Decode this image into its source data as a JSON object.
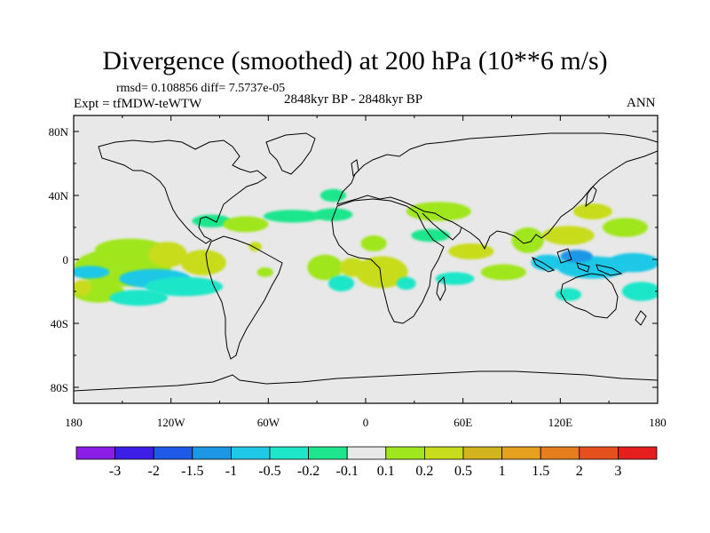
{
  "title": "Divergence (smoothed) at 200 hPa (10**6 m/s)",
  "stats": "rmsd= 0.108856 diff= 7.5737e-05",
  "experiment": "Expt = tfMDW-teWTW",
  "period": "2848kyr BP - 2848kyr BP",
  "season": "ANN",
  "lat_axis": {
    "labels": [
      "80N",
      "40N",
      "0",
      "40S",
      "80S"
    ],
    "values": [
      80,
      40,
      0,
      -40,
      -80
    ],
    "range": [
      -90,
      90
    ]
  },
  "lon_axis": {
    "labels": [
      "180",
      "120W",
      "60W",
      "0",
      "60E",
      "120E",
      "180"
    ],
    "values": [
      -180,
      -120,
      -60,
      0,
      60,
      120,
      180
    ],
    "range": [
      -180,
      180
    ]
  },
  "colorbar": {
    "colors": [
      "#8b1ee6",
      "#3c1ee6",
      "#1e5ae6",
      "#1e96e6",
      "#1ec8e6",
      "#1ee6c8",
      "#1ee68c",
      "#e8e8e8",
      "#a0e61e",
      "#c8dc1e",
      "#d2b41e",
      "#e6a01e",
      "#e67d1e",
      "#e6501e",
      "#e61e1e"
    ],
    "labels": [
      "-3",
      "-2",
      "-1.5",
      "-1",
      "-0.5",
      "-0.2",
      "-0.1",
      "0.1",
      "0.2",
      "0.5",
      "1",
      "1.5",
      "2",
      "3"
    ]
  },
  "field_blobs": [
    {
      "lon": -150,
      "lat": -5,
      "rx": 30,
      "ry": 12,
      "color": "#a0e61e"
    },
    {
      "lon": -145,
      "lat": 6,
      "rx": 22,
      "ry": 7,
      "color": "#a0e61e"
    },
    {
      "lon": -122,
      "lat": 3,
      "rx": 12,
      "ry": 8,
      "color": "#c8dc1e"
    },
    {
      "lon": -100,
      "lat": -2,
      "rx": 14,
      "ry": 8,
      "color": "#c8dc1e"
    },
    {
      "lon": -170,
      "lat": -8,
      "rx": 12,
      "ry": 4,
      "color": "#1ec8e6"
    },
    {
      "lon": -130,
      "lat": -12,
      "rx": 22,
      "ry": 6,
      "color": "#1ec8e6"
    },
    {
      "lon": -112,
      "lat": -17,
      "rx": 24,
      "ry": 6,
      "color": "#1ee6c8"
    },
    {
      "lon": -165,
      "lat": -20,
      "rx": 16,
      "ry": 7,
      "color": "#a0e61e"
    },
    {
      "lon": -175,
      "lat": -18,
      "rx": 6,
      "ry": 5,
      "color": "#c8dc1e"
    },
    {
      "lon": -140,
      "lat": -24,
      "rx": 18,
      "ry": 5,
      "color": "#1ee6c8"
    },
    {
      "lon": -95,
      "lat": 24,
      "rx": 12,
      "ry": 4,
      "color": "#1ee68c"
    },
    {
      "lon": -74,
      "lat": 22,
      "rx": 14,
      "ry": 5,
      "color": "#a0e61e"
    },
    {
      "lon": -45,
      "lat": 27,
      "rx": 18,
      "ry": 4,
      "color": "#1ee68c"
    },
    {
      "lon": -20,
      "lat": 28,
      "rx": 12,
      "ry": 4,
      "color": "#1ee68c"
    },
    {
      "lon": -20,
      "lat": 40,
      "rx": 8,
      "ry": 4,
      "color": "#1ee68c"
    },
    {
      "lon": -68,
      "lat": 8,
      "rx": 4,
      "ry": 3,
      "color": "#c8dc1e"
    },
    {
      "lon": -62,
      "lat": -8,
      "rx": 5,
      "ry": 3,
      "color": "#a0e61e"
    },
    {
      "lon": -25,
      "lat": -5,
      "rx": 11,
      "ry": 8,
      "color": "#a0e61e"
    },
    {
      "lon": -8,
      "lat": -5,
      "rx": 8,
      "ry": 6,
      "color": "#c8dc1e"
    },
    {
      "lon": -15,
      "lat": -15,
      "rx": 8,
      "ry": 5,
      "color": "#1ee6c8"
    },
    {
      "lon": 5,
      "lat": 10,
      "rx": 8,
      "ry": 5,
      "color": "#a0e61e"
    },
    {
      "lon": 10,
      "lat": -8,
      "rx": 16,
      "ry": 10,
      "color": "#c8dc1e"
    },
    {
      "lon": 25,
      "lat": -15,
      "rx": 6,
      "ry": 4,
      "color": "#1ee6c8"
    },
    {
      "lon": 45,
      "lat": 30,
      "rx": 20,
      "ry": 6,
      "color": "#a0e61e"
    },
    {
      "lon": 40,
      "lat": 15,
      "rx": 12,
      "ry": 4,
      "color": "#1ee68c"
    },
    {
      "lon": 65,
      "lat": 5,
      "rx": 14,
      "ry": 5,
      "color": "#c8dc1e"
    },
    {
      "lon": 55,
      "lat": -12,
      "rx": 12,
      "ry": 4,
      "color": "#1ee6c8"
    },
    {
      "lon": 85,
      "lat": -8,
      "rx": 14,
      "ry": 5,
      "color": "#a0e61e"
    },
    {
      "lon": 100,
      "lat": 12,
      "rx": 10,
      "ry": 8,
      "color": "#a0e61e"
    },
    {
      "lon": 125,
      "lat": 15,
      "rx": 16,
      "ry": 6,
      "color": "#c8dc1e"
    },
    {
      "lon": 140,
      "lat": 30,
      "rx": 12,
      "ry": 5,
      "color": "#c8dc1e"
    },
    {
      "lon": 112,
      "lat": -2,
      "rx": 10,
      "ry": 5,
      "color": "#1ec8e6"
    },
    {
      "lon": 140,
      "lat": -5,
      "rx": 22,
      "ry": 7,
      "color": "#1ec8e6"
    },
    {
      "lon": 165,
      "lat": -2,
      "rx": 16,
      "ry": 6,
      "color": "#1ec8e6"
    },
    {
      "lon": 130,
      "lat": 2,
      "rx": 10,
      "ry": 4,
      "color": "#1e96e6"
    },
    {
      "lon": 160,
      "lat": 20,
      "rx": 14,
      "ry": 6,
      "color": "#a0e61e"
    },
    {
      "lon": 170,
      "lat": -20,
      "rx": 12,
      "ry": 6,
      "color": "#1ee6c8"
    },
    {
      "lon": 125,
      "lat": -22,
      "rx": 8,
      "ry": 4,
      "color": "#1ee6c8"
    }
  ]
}
